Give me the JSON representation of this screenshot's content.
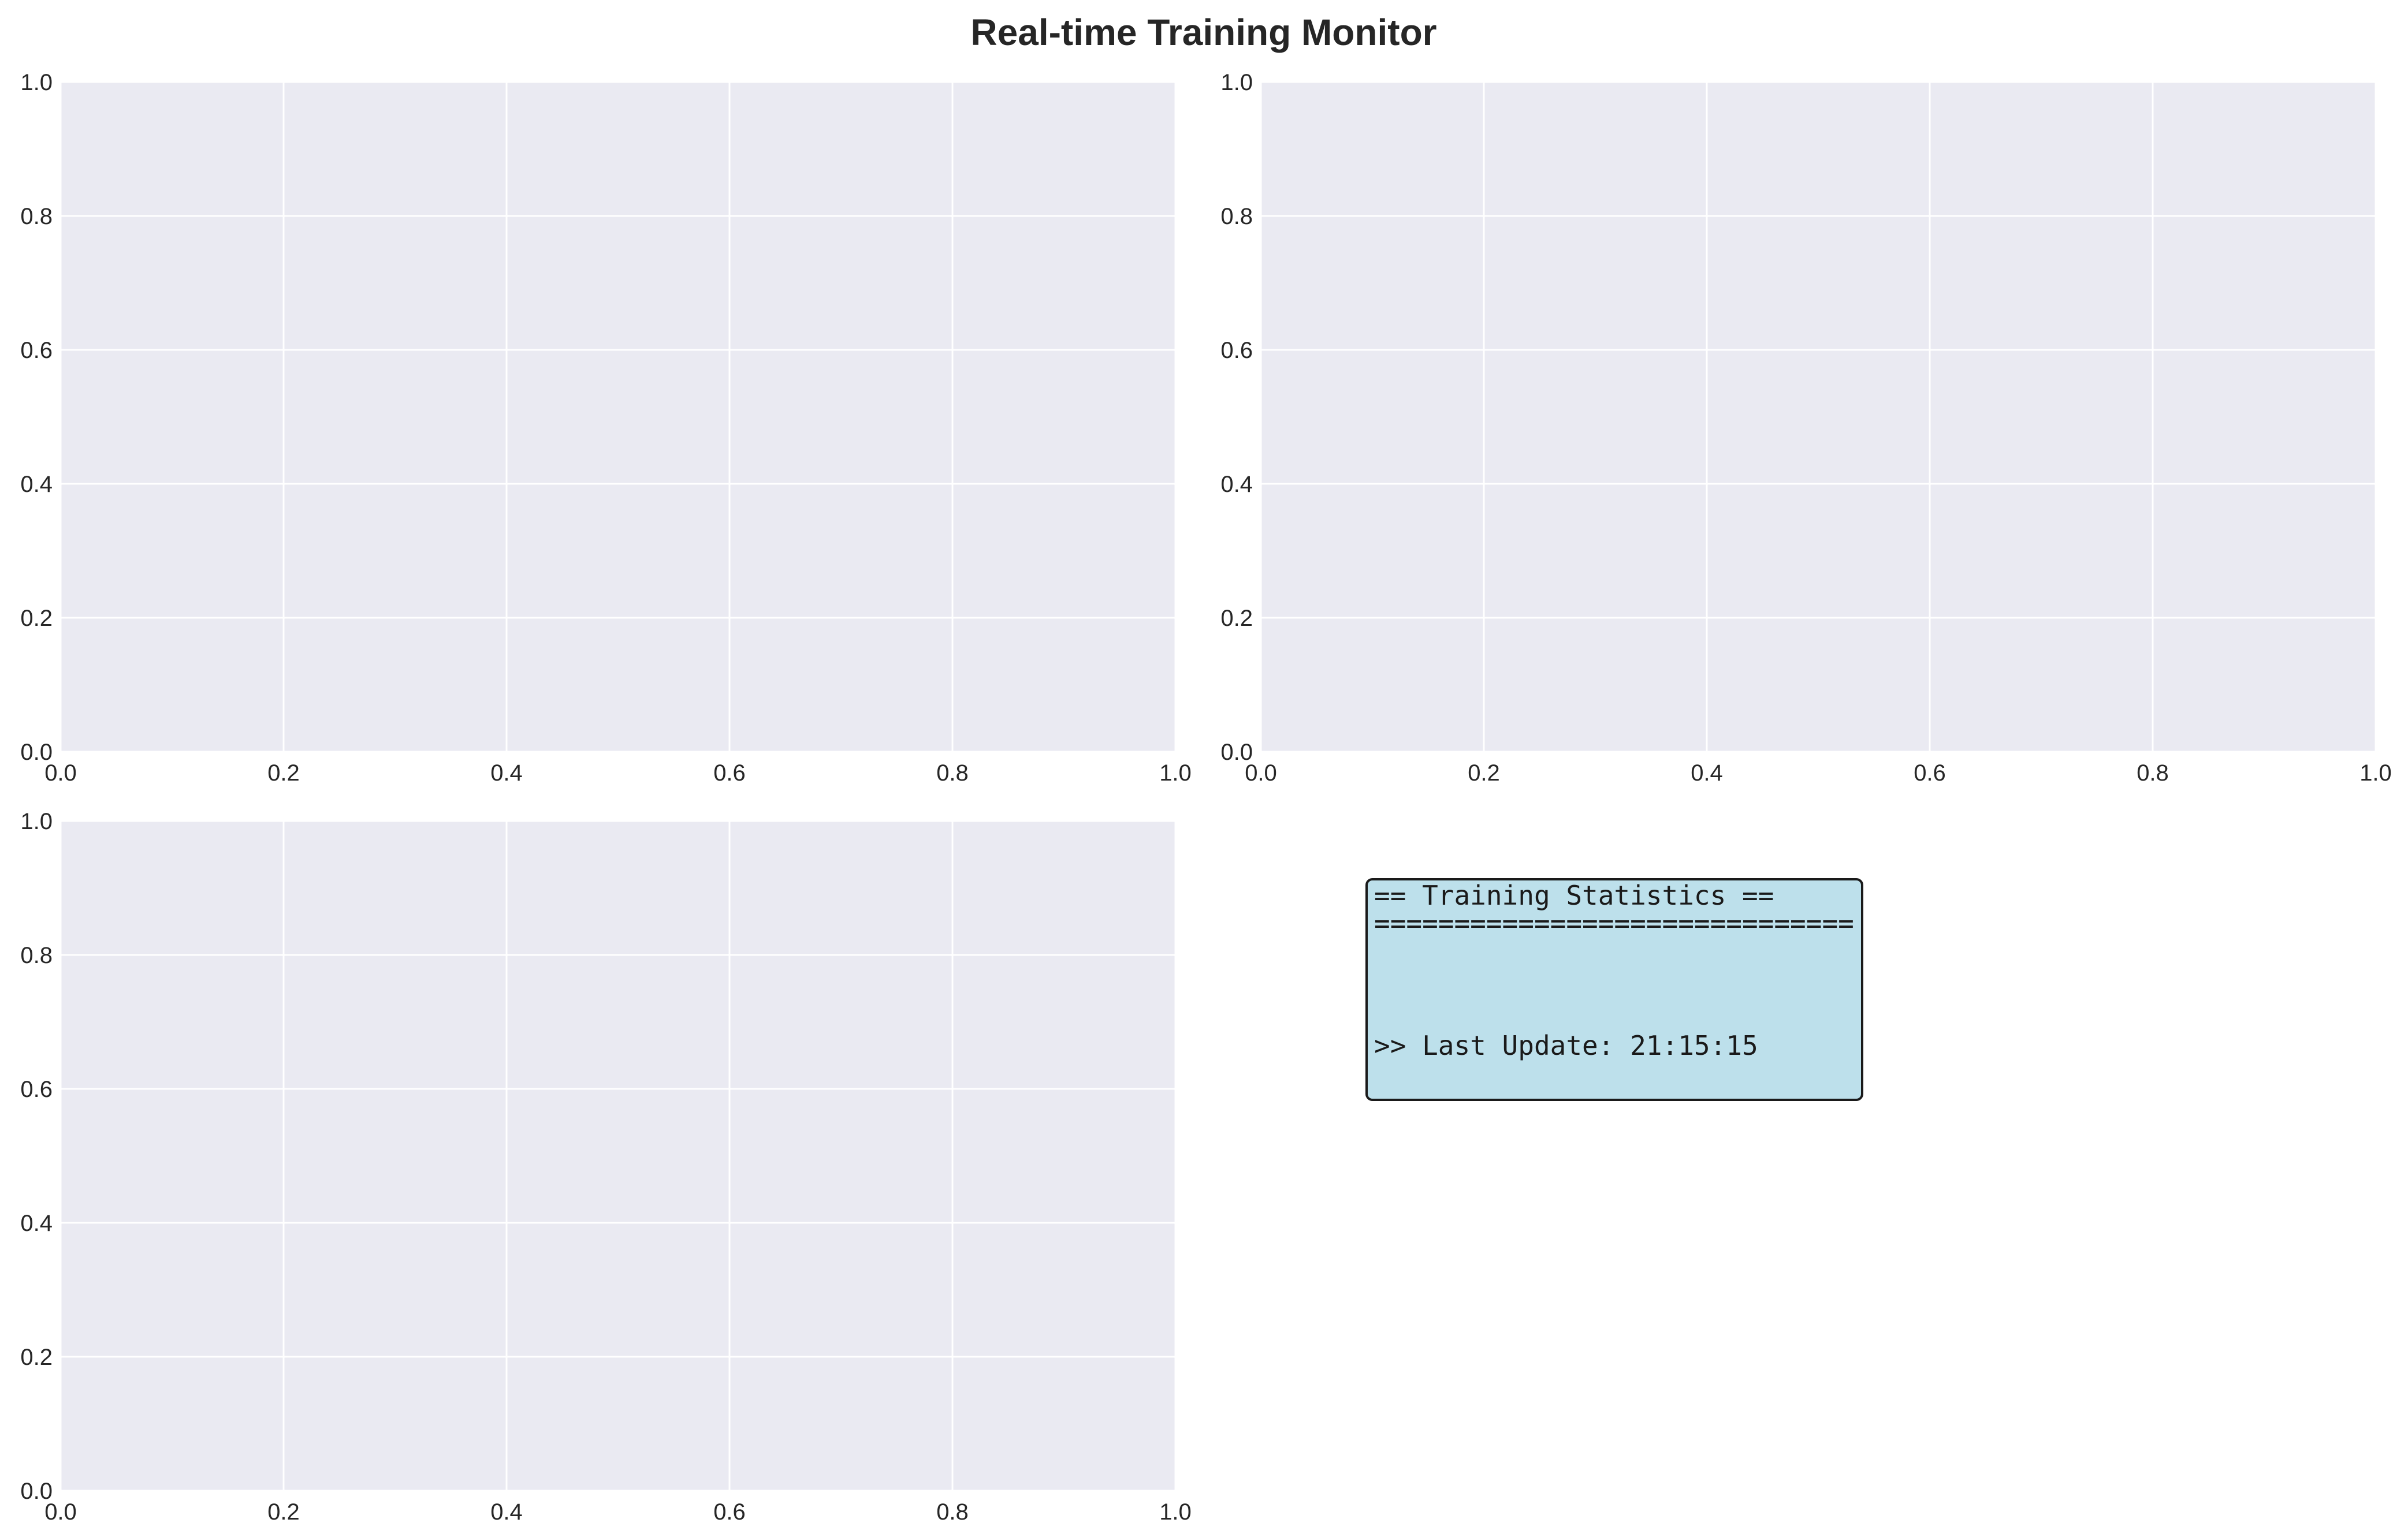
{
  "title": "Real-time Training Monitor",
  "colors": {
    "axes_bg": "#eaeaf2",
    "grid": "#ffffff",
    "stats_box_bg": "#add8e6",
    "stats_box_border": "#1a1a1a"
  },
  "chart_data": [
    {
      "type": "line",
      "position": "top-left",
      "title": "",
      "xlabel": "",
      "ylabel": "",
      "xlim": [
        0,
        1
      ],
      "ylim": [
        0,
        1
      ],
      "grid": true,
      "xticks": [
        "0.0",
        "0.2",
        "0.4",
        "0.6",
        "0.8",
        "1.0"
      ],
      "yticks": [
        "0.0",
        "0.2",
        "0.4",
        "0.6",
        "0.8",
        "1.0"
      ],
      "series": []
    },
    {
      "type": "line",
      "position": "top-right",
      "title": "",
      "xlabel": "",
      "ylabel": "",
      "xlim": [
        0,
        1
      ],
      "ylim": [
        0,
        1
      ],
      "grid": true,
      "xticks": [
        "0.0",
        "0.2",
        "0.4",
        "0.6",
        "0.8",
        "1.0"
      ],
      "yticks": [
        "0.0",
        "0.2",
        "0.4",
        "0.6",
        "0.8",
        "1.0"
      ],
      "series": []
    },
    {
      "type": "line",
      "position": "bottom-left",
      "title": "",
      "xlabel": "",
      "ylabel": "",
      "xlim": [
        0,
        1
      ],
      "ylim": [
        0,
        1
      ],
      "grid": true,
      "xticks": [
        "0.0",
        "0.2",
        "0.4",
        "0.6",
        "0.8",
        "1.0"
      ],
      "yticks": [
        "0.0",
        "0.2",
        "0.4",
        "0.6",
        "0.8",
        "1.0"
      ],
      "series": []
    }
  ],
  "stats_panel": {
    "lines": [
      "== Training Statistics ==",
      "==============================",
      "",
      "",
      ">> Last Update: 21:15:15"
    ]
  }
}
